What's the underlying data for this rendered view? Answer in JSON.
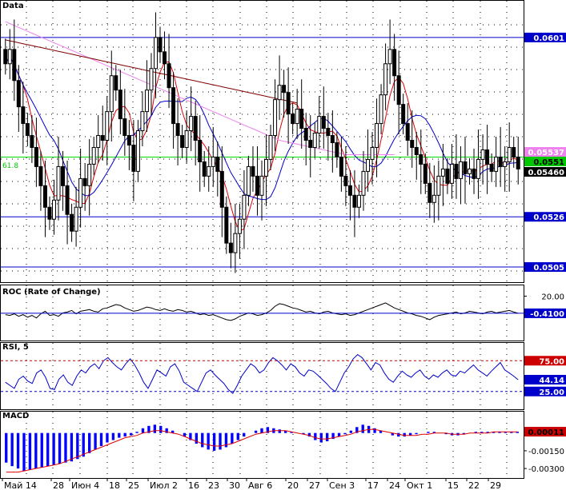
{
  "chart_data": [
    {
      "type": "candlestick",
      "title": "Data",
      "ylim": [
        0.05,
        0.0615
      ],
      "y_ticks": [
        "0.0601",
        "0.0551",
        "0.05460",
        "0.0526",
        "0.0505"
      ],
      "marker_label": "0.05537",
      "fib_label": "61.8",
      "horizontal_lines": [
        0.0601,
        0.0526,
        0.0505
      ],
      "fib_level": 0.0551,
      "current_value": "0.05460",
      "x_labels": [
        "Май 14",
        "28",
        "Июн 4",
        "18",
        "25",
        "Июл 2",
        "16",
        "23",
        "30",
        "Авг 6",
        "20",
        "27",
        "Сен 3",
        "17",
        "24",
        "Окт 1",
        "15",
        "22",
        "29"
      ],
      "series": [
        {
          "name": "close",
          "color": "#000000"
        },
        {
          "name": "ma_fast",
          "color": "#e00000"
        },
        {
          "name": "ma_mid",
          "color": "#0000cc"
        },
        {
          "name": "ma_slow",
          "color": "#ee82ee"
        },
        {
          "name": "ma_long",
          "color": "#800000"
        }
      ],
      "close": [
        0.059,
        0.0596,
        0.0583,
        0.0572,
        0.0565,
        0.056,
        0.0555,
        0.0547,
        0.0539,
        0.053,
        0.0525,
        0.0533,
        0.0547,
        0.0539,
        0.0527,
        0.052,
        0.053,
        0.0542,
        0.0539,
        0.0548,
        0.0555,
        0.056,
        0.0558,
        0.057,
        0.0585,
        0.0579,
        0.0567,
        0.056,
        0.0556,
        0.0545,
        0.0562,
        0.057,
        0.0579,
        0.0588,
        0.0601,
        0.0595,
        0.059,
        0.058,
        0.0565,
        0.056,
        0.0555,
        0.0562,
        0.0568,
        0.0558,
        0.0549,
        0.0543,
        0.0547,
        0.0551,
        0.0545,
        0.053,
        0.0515,
        0.0511,
        0.0519,
        0.0525,
        0.0535,
        0.0547,
        0.0543,
        0.0535,
        0.0543,
        0.055,
        0.056,
        0.0575,
        0.0581,
        0.0578,
        0.0569,
        0.0565,
        0.0571,
        0.0563,
        0.0558,
        0.0555,
        0.0561,
        0.0568,
        0.0563,
        0.056,
        0.0557,
        0.0551,
        0.0543,
        0.0539,
        0.0535,
        0.053,
        0.0535,
        0.0545,
        0.055,
        0.0555,
        0.0565,
        0.0577,
        0.059,
        0.0596,
        0.0585,
        0.0573,
        0.0565,
        0.0558,
        0.0555,
        0.0552,
        0.0548,
        0.054,
        0.0532,
        0.0535,
        0.0543,
        0.0546,
        0.054,
        0.0548,
        0.0542,
        0.0549,
        0.0544,
        0.0546,
        0.0542,
        0.055,
        0.0554,
        0.0548,
        0.0545,
        0.0551,
        0.0547,
        0.0549,
        0.0555,
        0.0551,
        0.0546
      ],
      "oscillators": [
        {
          "type": "line",
          "title": "ROC (Rate of Change)",
          "ylim": [
            -30,
            30
          ],
          "ticks": [
            "20.00",
            "-0.4100"
          ],
          "current": -0.41,
          "color": "#000000",
          "values": [
            -2,
            -3,
            -1,
            -4,
            -2,
            -5,
            -3,
            -6,
            -1,
            2,
            -3,
            -2,
            -4,
            0,
            1,
            3,
            -1,
            2,
            3,
            4,
            2,
            1,
            5,
            6,
            8,
            10,
            9,
            6,
            4,
            2,
            3,
            5,
            7,
            6,
            4,
            3,
            5,
            3,
            2,
            4,
            3,
            1,
            2,
            0,
            -2,
            -1,
            -3,
            -2,
            -4,
            -6,
            -8,
            -9,
            -7,
            -4,
            -2,
            0,
            -1,
            -3,
            -2,
            0,
            3,
            8,
            11,
            10,
            8,
            6,
            5,
            3,
            1,
            2,
            0,
            -1,
            1,
            2,
            0,
            -1,
            -2,
            -1,
            -3,
            -2,
            0,
            2,
            4,
            6,
            8,
            10,
            12,
            9,
            6,
            4,
            2,
            0,
            -1,
            -3,
            -4,
            -6,
            -8,
            -5,
            -3,
            -2,
            -1,
            0,
            1,
            -1,
            0,
            2,
            1,
            0,
            -1,
            1,
            2,
            0,
            1,
            2,
            3,
            1,
            -0.41
          ]
        },
        {
          "type": "line",
          "title": "RSI, 5",
          "ylim": [
            0,
            100
          ],
          "ticks": [
            "75.00",
            "44.14",
            "25.00"
          ],
          "levels": [
            75,
            25
          ],
          "current": 44.14,
          "color": "#0000cc",
          "values": [
            40,
            35,
            30,
            45,
            50,
            42,
            38,
            55,
            60,
            48,
            30,
            28,
            45,
            52,
            40,
            35,
            50,
            60,
            55,
            65,
            70,
            62,
            75,
            80,
            72,
            65,
            60,
            70,
            78,
            68,
            55,
            40,
            30,
            45,
            60,
            55,
            50,
            65,
            70,
            58,
            40,
            35,
            30,
            25,
            40,
            55,
            60,
            52,
            45,
            38,
            28,
            22,
            35,
            50,
            60,
            70,
            65,
            55,
            60,
            72,
            80,
            75,
            68,
            60,
            70,
            65,
            55,
            50,
            60,
            58,
            52,
            45,
            38,
            30,
            25,
            40,
            55,
            65,
            78,
            85,
            80,
            70,
            60,
            72,
            68,
            55,
            45,
            40,
            50,
            58,
            52,
            48,
            55,
            60,
            50,
            45,
            52,
            48,
            55,
            60,
            52,
            50,
            58,
            55,
            62,
            68,
            60,
            55,
            50,
            58,
            65,
            72,
            60,
            55,
            50,
            44.14
          ]
        },
        {
          "type": "histogram",
          "title": "MACD",
          "ylim": [
            -0.0036,
            0.0016
          ],
          "ticks": [
            "0.00011",
            "-0.00150",
            "-0.00300"
          ],
          "current": 0.00011,
          "color": "#0000ff",
          "signal_color": "#e00000",
          "hist": [
            -0.0025,
            -0.0028,
            -0.003,
            -0.0032,
            -0.0031,
            -0.003,
            -0.0029,
            -0.0028,
            -0.0027,
            -0.0026,
            -0.0025,
            -0.0024,
            -0.0022,
            -0.002,
            -0.0017,
            -0.0014,
            -0.0011,
            -0.0008,
            -0.0006,
            -0.0004,
            -0.0003,
            -0.0002,
            0.0001,
            0.0004,
            0.0006,
            0.0007,
            0.0006,
            0.0004,
            0.0002,
            0.0,
            -0.0003,
            -0.0006,
            -0.0009,
            -0.0012,
            -0.0014,
            -0.0015,
            -0.0014,
            -0.0012,
            -0.0009,
            -0.0006,
            -0.0003,
            0.0,
            0.0002,
            0.0004,
            0.0005,
            0.0004,
            0.0003,
            0.0002,
            0.0001,
            0.0,
            -0.0001,
            -0.0003,
            -0.0006,
            -0.0008,
            -0.0007,
            -0.0005,
            -0.0003,
            -0.0001,
            0.0002,
            0.0005,
            0.0007,
            0.0006,
            0.0004,
            0.0002,
            0.0,
            -0.0002,
            -0.0003,
            -0.0003,
            -0.0002,
            -0.0001,
            0.0,
            0.0001,
            0.0001,
            0.0,
            -0.0001,
            -0.0002,
            -0.0002,
            -0.0001,
            0.0,
            0.0001,
            0.0001,
            0.0001,
            0.0001,
            0.0001,
            0.0001,
            0.0001,
            0.00011
          ],
          "signal": [
            -0.0033,
            -0.0033,
            -0.0033,
            -0.0032,
            -0.0031,
            -0.003,
            -0.0029,
            -0.0028,
            -0.0027,
            -0.0026,
            -0.0024,
            -0.0022,
            -0.002,
            -0.0018,
            -0.0016,
            -0.0014,
            -0.0012,
            -0.001,
            -0.0008,
            -0.0006,
            -0.0004,
            -0.0003,
            -0.0002,
            0.0,
            0.0001,
            0.0002,
            0.0002,
            0.0001,
            0.0,
            -0.0001,
            -0.0003,
            -0.0005,
            -0.0007,
            -0.0009,
            -0.001,
            -0.0011,
            -0.0011,
            -0.001,
            -0.0009,
            -0.0007,
            -0.0005,
            -0.0003,
            -0.0001,
            0.0,
            0.0001,
            0.0002,
            0.0002,
            0.0002,
            0.0001,
            0.0,
            -0.0001,
            -0.0002,
            -0.0004,
            -0.0005,
            -0.0005,
            -0.0004,
            -0.0003,
            -0.0002,
            -0.0001,
            0.0001,
            0.0002,
            0.0003,
            0.0003,
            0.0002,
            0.0001,
            0.0,
            -0.0001,
            -0.0002,
            -0.0002,
            -0.0002,
            -0.0001,
            -0.0001,
            0.0,
            0.0,
            0.0,
            -0.0001,
            -0.0001,
            -0.0001,
            0.0,
            0.0,
            0.0,
            0.0,
            0.0001,
            0.0001,
            0.0001,
            0.0001,
            0.0001
          ]
        }
      ]
    }
  ],
  "colors": {
    "blue_badge": "#0000cc",
    "black_badge": "#000000",
    "green_badge": "#00c800",
    "pink_badge": "#ee82ee",
    "red_badge": "#cc0000",
    "fib_line": "#00dd00",
    "hline": "#0000cc"
  }
}
